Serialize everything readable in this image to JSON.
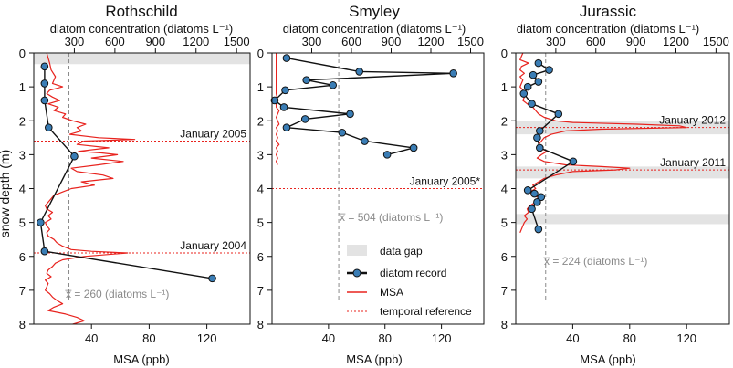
{
  "figure": {
    "y_axis_label": "snow depth (m)",
    "top_axis_label": "diatom concentration (diatoms L⁻¹)",
    "bottom_axis_label": "MSA (ppb)",
    "depth_ticks": [
      "0",
      "1",
      "2",
      "3",
      "4",
      "5",
      "6",
      "7",
      "8"
    ],
    "diatom_ticks": [
      "300",
      "600",
      "900",
      "1200",
      "1500"
    ],
    "msa_ticks": [
      "40",
      "80",
      "120"
    ],
    "mean_prefix": "x̅ = ",
    "mean_suffix": " (diatoms L⁻¹)"
  },
  "legend": {
    "data_gap": "data gap",
    "diatom_record": "diatom record",
    "msa": "MSA",
    "temporal_reference": "temporal reference"
  },
  "colors": {
    "msa": "#e8231e",
    "diatom_line": "#111111",
    "marker_fill": "#3a7db5",
    "gap": "#e3e3e3",
    "mean": "#8a8a8a"
  },
  "chart_data": [
    {
      "type": "line",
      "title": "Rothschild",
      "ylim": [
        0,
        8
      ],
      "diatom_xlim": [
        0,
        1600
      ],
      "msa_xlim": [
        0,
        150
      ],
      "mean_value": "260",
      "mean_diatom": 260,
      "gaps": [
        [
          0,
          0.33
        ]
      ],
      "temporal_refs": [
        {
          "depth": 2.6,
          "label": "January 2005"
        },
        {
          "depth": 5.9,
          "label": "January 2004"
        }
      ],
      "diatom_series": {
        "name": "diatom record",
        "depth": [
          0.4,
          0.9,
          1.4,
          2.2,
          3.05,
          5.0,
          5.85,
          6.65
        ],
        "concentration": [
          80,
          80,
          80,
          110,
          300,
          50,
          80,
          1320
        ]
      },
      "msa_series": {
        "name": "MSA",
        "depth": [
          0.0,
          0.15,
          0.3,
          0.5,
          0.7,
          0.9,
          1.0,
          1.1,
          1.2,
          1.3,
          1.4,
          1.5,
          1.6,
          1.7,
          1.8,
          1.9,
          2.0,
          2.1,
          2.2,
          2.3,
          2.4,
          2.5,
          2.55,
          2.6,
          2.7,
          2.8,
          2.9,
          2.95,
          3.0,
          3.1,
          3.2,
          3.3,
          3.4,
          3.5,
          3.6,
          3.7,
          3.8,
          3.9,
          4.0,
          4.1,
          4.2,
          4.3,
          4.4,
          4.5,
          4.6,
          4.7,
          4.8,
          4.9,
          5.0,
          5.1,
          5.2,
          5.3,
          5.4,
          5.5,
          5.6,
          5.7,
          5.8,
          5.85,
          5.9,
          6.0,
          6.1,
          6.2,
          6.3,
          6.4,
          6.5,
          6.6,
          6.7,
          6.8,
          6.9,
          7.0,
          7.1,
          7.2,
          7.3,
          7.4,
          7.5,
          7.6,
          7.7,
          7.8,
          7.9,
          8.0
        ],
        "msa": [
          9,
          10,
          11,
          12,
          15,
          13,
          20,
          11,
          9,
          13,
          18,
          10,
          17,
          14,
          22,
          20,
          27,
          36,
          30,
          33,
          25,
          45,
          70,
          35,
          30,
          52,
          31,
          47,
          58,
          40,
          62,
          45,
          26,
          30,
          48,
          55,
          33,
          42,
          26,
          20,
          14,
          12,
          10,
          8,
          9,
          13,
          10,
          12,
          8,
          9,
          11,
          9,
          10,
          14,
          16,
          20,
          26,
          40,
          65,
          35,
          20,
          15,
          13,
          10,
          9,
          12,
          8,
          10,
          9,
          8,
          11,
          13,
          16,
          20,
          14,
          10,
          22,
          30,
          35,
          27
        ]
      }
    },
    {
      "type": "line",
      "title": "Smyley",
      "ylim": [
        0,
        8
      ],
      "diatom_xlim": [
        0,
        1600
      ],
      "msa_xlim": [
        0,
        150
      ],
      "mean_value": "504",
      "mean_diatom": 504,
      "gaps": [],
      "temporal_refs": [
        {
          "depth": 4.0,
          "label": "January 2005*"
        }
      ],
      "diatom_series": {
        "name": "diatom record",
        "depth": [
          0.15,
          0.55,
          0.6,
          0.8,
          0.95,
          1.1,
          1.4,
          1.6,
          1.8,
          1.95,
          2.2,
          2.35,
          2.6,
          2.8,
          3.0
        ],
        "concentration": [
          110,
          660,
          1370,
          260,
          460,
          100,
          20,
          90,
          590,
          250,
          110,
          530,
          700,
          1070,
          870
        ]
      },
      "msa_series": {
        "name": "MSA",
        "depth": [
          0.0,
          0.2,
          0.4,
          0.6,
          0.8,
          1.0,
          1.2,
          1.4,
          1.5,
          1.6,
          1.7,
          1.8,
          1.9,
          2.0,
          2.1,
          2.2,
          2.3,
          2.4,
          2.5,
          2.6,
          2.7,
          2.8,
          2.9,
          3.0,
          3.1,
          3.2,
          3.3
        ],
        "msa": [
          3,
          3,
          3,
          3,
          3,
          3,
          3,
          4,
          3,
          3,
          5,
          4,
          3,
          4,
          5,
          3,
          4,
          3,
          4,
          3,
          5,
          3,
          4,
          3,
          4,
          3,
          4
        ]
      }
    },
    {
      "type": "line",
      "title": "Jurassic",
      "ylim": [
        0,
        8
      ],
      "diatom_xlim": [
        0,
        1600
      ],
      "msa_xlim": [
        0,
        150
      ],
      "mean_value": "224",
      "mean_diatom": 224,
      "gaps": [
        [
          2.0,
          2.4
        ],
        [
          3.35,
          3.7
        ],
        [
          4.75,
          5.05
        ]
      ],
      "temporal_refs": [
        {
          "depth": 2.2,
          "label": "January 2012"
        },
        {
          "depth": 3.45,
          "label": "January 2011"
        }
      ],
      "diatom_series": {
        "name": "diatom record",
        "depth": [
          0.3,
          0.5,
          0.65,
          0.85,
          1.0,
          1.2,
          1.5,
          1.8,
          2.3,
          2.5,
          2.8,
          3.2,
          4.05,
          4.15,
          4.25,
          4.4,
          4.6,
          5.2
        ],
        "concentration": [
          170,
          250,
          130,
          170,
          90,
          60,
          120,
          320,
          180,
          160,
          180,
          430,
          90,
          140,
          190,
          160,
          120,
          170
        ]
      },
      "msa_series": {
        "name": "MSA",
        "depth": [
          0.0,
          0.1,
          0.2,
          0.3,
          0.4,
          0.5,
          0.6,
          0.7,
          0.8,
          0.9,
          1.0,
          1.1,
          1.2,
          1.3,
          1.4,
          1.5,
          1.6,
          1.7,
          1.8,
          1.9,
          2.0,
          2.05,
          2.1,
          2.15,
          2.2,
          2.25,
          2.3,
          2.4,
          2.5,
          2.6,
          2.7,
          2.8,
          2.9,
          3.0,
          3.1,
          3.2,
          3.3,
          3.35,
          3.4,
          3.45,
          3.5,
          3.6,
          3.7,
          3.8,
          3.9,
          4.0,
          4.1,
          4.2,
          4.3,
          4.4,
          4.5,
          4.6,
          4.7,
          4.8,
          4.9,
          5.0,
          5.1,
          5.2,
          5.3
        ],
        "msa": [
          5,
          4,
          3,
          9,
          4,
          3,
          6,
          3,
          5,
          4,
          3,
          5,
          4,
          6,
          5,
          8,
          12,
          14,
          16,
          20,
          28,
          40,
          85,
          115,
          120,
          60,
          35,
          25,
          20,
          18,
          16,
          17,
          22,
          18,
          15,
          20,
          35,
          60,
          80,
          70,
          40,
          28,
          20,
          16,
          12,
          14,
          10,
          12,
          18,
          14,
          10,
          8,
          9,
          6,
          8,
          6,
          5,
          4,
          3
        ]
      }
    }
  ]
}
